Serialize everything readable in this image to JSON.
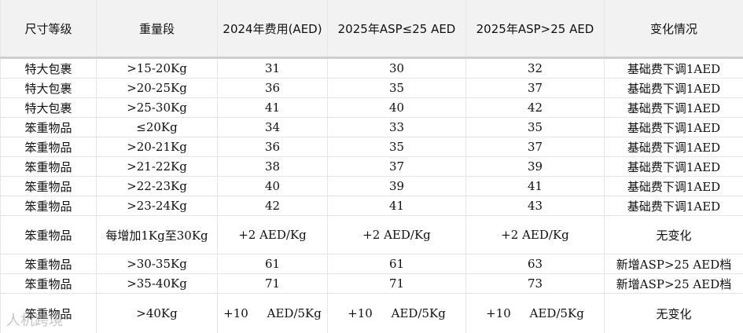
{
  "table": {
    "header": [
      "尺寸等级",
      "重量段",
      "2024年费用(AED)",
      "2025年ASP≤25 AED",
      "2025年ASP>25 AED",
      "变化情况"
    ],
    "rows": [
      [
        "特大包裹",
        ">15-20Kg",
        "31",
        "30",
        "32",
        "基础费下调1AED"
      ],
      [
        "特大包裹",
        ">20-25Kg",
        "36",
        "35",
        "37",
        "基础费下调1AED"
      ],
      [
        "特大包裹",
        ">25-30Kg",
        "41",
        "40",
        "42",
        "基础费下调1AED"
      ],
      [
        "笨重物品",
        "≤20Kg",
        "34",
        "33",
        "35",
        "基础费下调1AED"
      ],
      [
        "笨重物品",
        ">20-21Kg",
        "36",
        "35",
        "37",
        "基础费下调1AED"
      ],
      [
        "笨重物品",
        ">21-22Kg",
        "38",
        "37",
        "39",
        "基础费下调1AED"
      ],
      [
        "笨重物品",
        ">22-23Kg",
        "40",
        "39",
        "41",
        "基础费下调1AED"
      ],
      [
        "笨重物品",
        ">23-24Kg",
        "42",
        "41",
        "43",
        "基础费下调1AED"
      ],
      [
        "笨重物品",
        "每增加1Kg至30Kg",
        "+2 AED/Kg",
        "+2 AED/Kg",
        "+2 AED/Kg",
        "无变化"
      ],
      [
        "笨重物品",
        ">30-35Kg",
        "61",
        "61",
        "63",
        "新增ASP>25 AED档"
      ],
      [
        "笨重物品",
        ">35-40Kg",
        "71",
        "71",
        "73",
        "新增ASP>25 AED档"
      ],
      [
        "笨重物品",
        ">40Kg",
        "+10     AED/5Kg",
        "+10     AED/5Kg",
        "+10     AED/5Kg",
        "无变化"
      ]
    ]
  },
  "watermark": "人机跨境"
}
